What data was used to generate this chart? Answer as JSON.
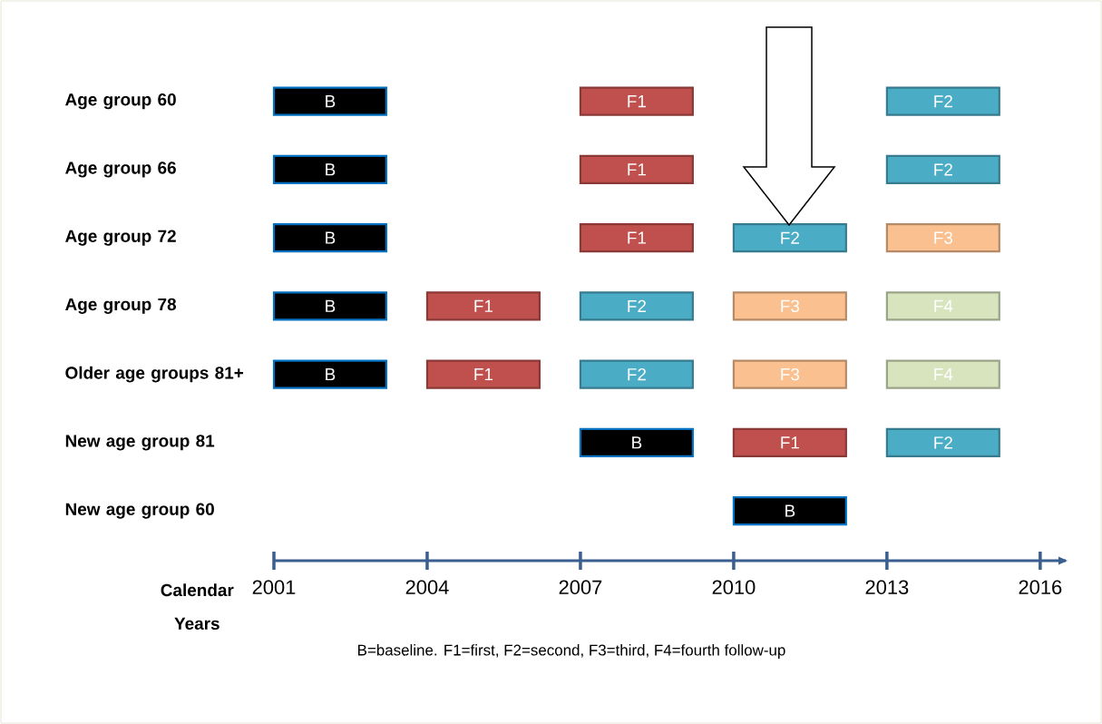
{
  "chart_data": {
    "type": "bar",
    "orientation": "horizontal",
    "xlabel": "Calendar Years",
    "categories": [
      "Age group 60",
      "Age group 66",
      "Age group 72",
      "Age group 78",
      "Older age groups 81+",
      "New age group 81",
      "New age group 60"
    ],
    "series": [
      {
        "color": "#000000",
        "base": [
          2001,
          2001,
          2001,
          2001,
          2001,
          2007,
          2010
        ],
        "values": [
          2.2,
          2.2,
          2.2,
          2.2,
          2.2,
          2.2,
          2.2
        ],
        "value_labels": [
          "B",
          "B",
          "B",
          "B",
          "B",
          "B",
          "B"
        ]
      },
      {
        "color": "#c0504d",
        "base": [
          2007,
          2007,
          2007,
          2004,
          2004,
          2010,
          null
        ],
        "values": [
          2.2,
          2.2,
          2.2,
          2.2,
          2.2,
          2.2,
          null
        ],
        "value_labels": [
          "F1",
          "F1",
          "F1",
          "F1",
          "F1",
          "F1",
          null
        ]
      },
      {
        "color": "#4bacc6",
        "base": [
          2013,
          2013,
          2010,
          2007,
          2007,
          2013,
          null
        ],
        "values": [
          2.2,
          2.2,
          2.2,
          2.2,
          2.2,
          2.2,
          null
        ],
        "value_labels": [
          "F2",
          "F2",
          "F2",
          "F2",
          "F2",
          "F2",
          null
        ]
      },
      {
        "color": "#fac090",
        "base": [
          null,
          null,
          2013,
          2010,
          2010,
          null,
          null
        ],
        "values": [
          null,
          null,
          2.2,
          2.2,
          2.2,
          null,
          null
        ],
        "value_labels": [
          null,
          null,
          "F3",
          "F3",
          "F3",
          null,
          null
        ]
      },
      {
        "color": "#d7e4bd",
        "base": [
          null,
          null,
          null,
          2013,
          2013,
          null,
          null
        ],
        "values": [
          null,
          null,
          null,
          2.2,
          2.2,
          null,
          null
        ],
        "value_labels": [
          null,
          null,
          null,
          "F4",
          "F4",
          null,
          null
        ]
      }
    ],
    "xlim": [
      2001,
      2016.5
    ],
    "xticks": [
      2001,
      2004,
      2007,
      2010,
      2013,
      2016
    ],
    "annotations": [
      "B=baseline. F1=first, F2=second, F3=third, F4=fourth follow-up"
    ]
  }
}
